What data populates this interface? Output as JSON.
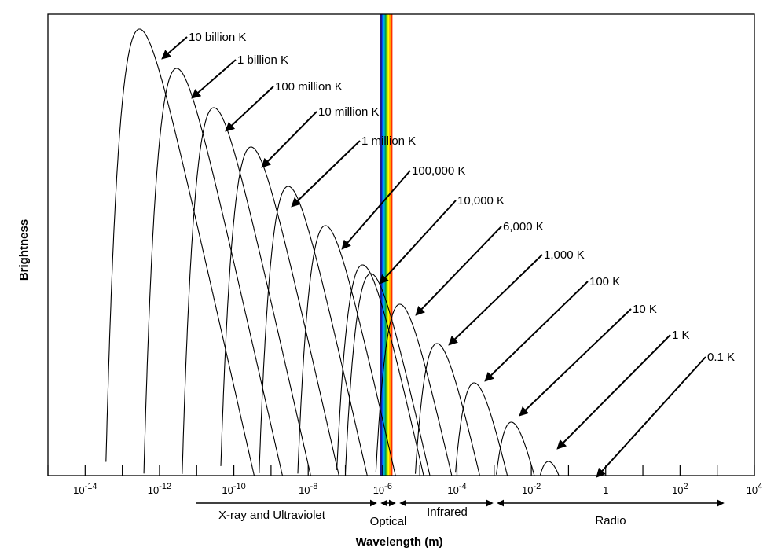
{
  "chart_data": {
    "type": "line",
    "xlabel": "Wavelength (m)",
    "ylabel": "Brightness",
    "x_scale": "log",
    "xlim": [
      "1e-15",
      "1e4"
    ],
    "x_ticks": [
      {
        "base": "10",
        "exp": "-14"
      },
      {
        "base": "10",
        "exp": "-12"
      },
      {
        "base": "10",
        "exp": "-10"
      },
      {
        "base": "10",
        "exp": "-8"
      },
      {
        "base": "10",
        "exp": "-6"
      },
      {
        "base": "10",
        "exp": "-4"
      },
      {
        "base": "10",
        "exp": "-2"
      },
      {
        "base": "1",
        "exp": ""
      },
      {
        "base": "10",
        "exp": "2"
      },
      {
        "base": "10",
        "exp": "4"
      }
    ],
    "series": [
      {
        "name": "10 billion K",
        "temperature_K": 10000000000.0
      },
      {
        "name": "1 billion K",
        "temperature_K": 1000000000.0
      },
      {
        "name": "100 million K",
        "temperature_K": 100000000.0
      },
      {
        "name": "10 million K",
        "temperature_K": 10000000.0
      },
      {
        "name": "1 million K",
        "temperature_K": 1000000.0
      },
      {
        "name": "100,000 K",
        "temperature_K": 100000.0
      },
      {
        "name": "10,000 K",
        "temperature_K": 10000.0
      },
      {
        "name": "6,000 K",
        "temperature_K": 6000
      },
      {
        "name": "1,000 K",
        "temperature_K": 1000
      },
      {
        "name": "100 K",
        "temperature_K": 100
      },
      {
        "name": "10 K",
        "temperature_K": 10
      },
      {
        "name": "1 K",
        "temperature_K": 1
      },
      {
        "name": "0.1 K",
        "temperature_K": 0.1
      }
    ],
    "bands": [
      {
        "name": "X-ray and Ultraviolet",
        "from": "1e-11",
        "to": "1e-6"
      },
      {
        "name": "Optical",
        "from": "4e-7",
        "to": "7e-7"
      },
      {
        "name": "Infrared",
        "from": "1e-6",
        "to": "1e-3"
      },
      {
        "name": "Radio",
        "from": "1e-3",
        "to": "1e3"
      }
    ],
    "optical_colors": [
      "#1a1a8c",
      "#0050ff",
      "#00b0e0",
      "#00a050",
      "#90d000",
      "#ffff00",
      "#ffa000",
      "#ff3000"
    ],
    "grid": false,
    "legend": "none"
  }
}
